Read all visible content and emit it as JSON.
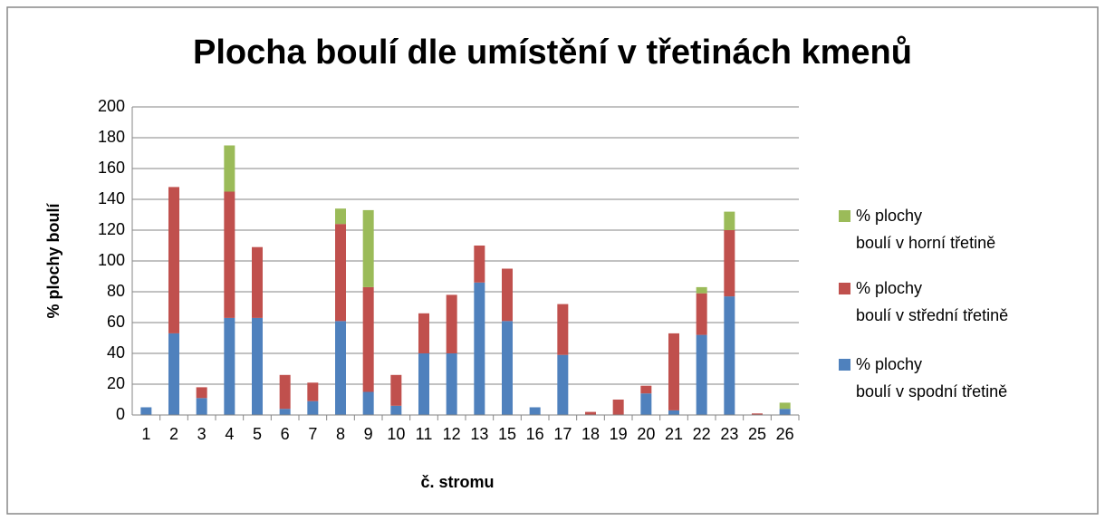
{
  "chart_data": {
    "type": "stacked_bar",
    "title": "Plocha boulí dle umístění v třetinách kmenů",
    "x_label": "č. stromu",
    "y_label": "% plochy boulí",
    "categories": [
      "1",
      "2",
      "3",
      "4",
      "5",
      "6",
      "7",
      "8",
      "9",
      "10",
      "11",
      "12",
      "13",
      "15",
      "16",
      "17",
      "18",
      "19",
      "20",
      "21",
      "22",
      "23",
      "25",
      "26"
    ],
    "series": [
      {
        "name": "% plochy\nboulí v spodní třetině",
        "color": "#4f81bd",
        "values": [
          5,
          53,
          11,
          63,
          63,
          4,
          9,
          61,
          15,
          6,
          40,
          40,
          86,
          61,
          5,
          39,
          0,
          0,
          14,
          3,
          52,
          77,
          0,
          4
        ]
      },
      {
        "name": "% plochy\nboulí v střední třetině",
        "color": "#c0504d",
        "values": [
          0,
          95,
          7,
          82,
          46,
          22,
          12,
          63,
          68,
          20,
          26,
          38,
          24,
          34,
          0,
          33,
          2,
          10,
          5,
          50,
          27,
          43,
          1,
          0
        ]
      },
      {
        "name": "% plochy\nboulí v horní třetině",
        "color": "#9bbb59",
        "values": [
          0,
          0,
          0,
          30,
          0,
          0,
          0,
          10,
          50,
          0,
          0,
          0,
          0,
          0,
          0,
          0,
          0,
          0,
          0,
          0,
          4,
          12,
          0,
          4
        ]
      }
    ],
    "ylim": [
      0,
      200
    ],
    "yticks": [
      0,
      20,
      40,
      60,
      80,
      100,
      120,
      140,
      160,
      180,
      200
    ],
    "grid": true
  }
}
